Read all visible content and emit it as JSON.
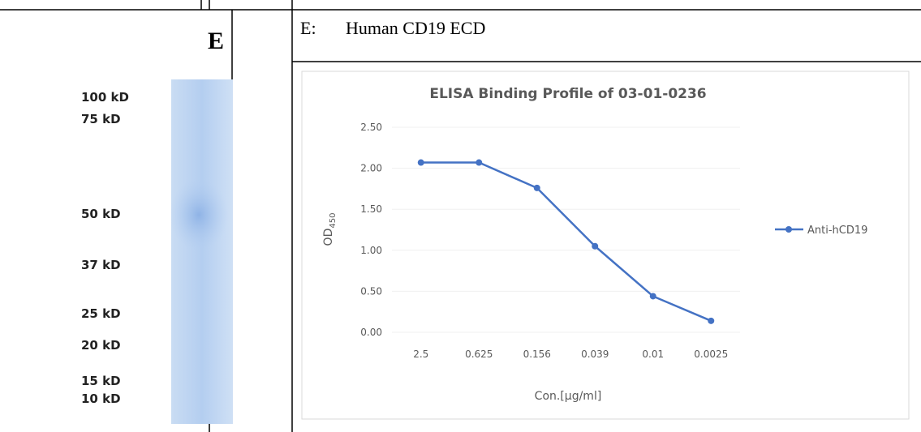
{
  "left": {
    "lane_label": "E",
    "markers": [
      "100 kD",
      "75 kD",
      "50 kD",
      "37 kD",
      "25 kD",
      "20 kD",
      "15 kD",
      "10 kD"
    ]
  },
  "right": {
    "heading_letter": "E:",
    "heading": "Human CD19 ECD"
  },
  "chart_data": {
    "type": "line",
    "title": "ELISA Binding Profile of 03-01-0236",
    "x_label": "Con.[µg/ml]",
    "y_label": {
      "main": "OD",
      "subscript": "450"
    },
    "categories": [
      "2.5",
      "0.625",
      "0.156",
      "0.039",
      "0.01",
      "0.0025"
    ],
    "series": [
      {
        "name": "Anti-hCD19",
        "color": "#4472c4",
        "values": [
          2.07,
          2.07,
          1.76,
          1.05,
          0.44,
          0.14
        ]
      }
    ],
    "ylim": [
      0,
      2.5
    ],
    "yticks": [
      {
        "value": 0,
        "label": "0.00"
      },
      {
        "value": 0.5,
        "label": "0.50"
      },
      {
        "value": 1,
        "label": "1.00"
      },
      {
        "value": 1.5,
        "label": "1.50"
      },
      {
        "value": 2,
        "label": "2.00"
      },
      {
        "value": 2.5,
        "label": "2.50"
      }
    ],
    "grid": true,
    "legend": "right"
  }
}
